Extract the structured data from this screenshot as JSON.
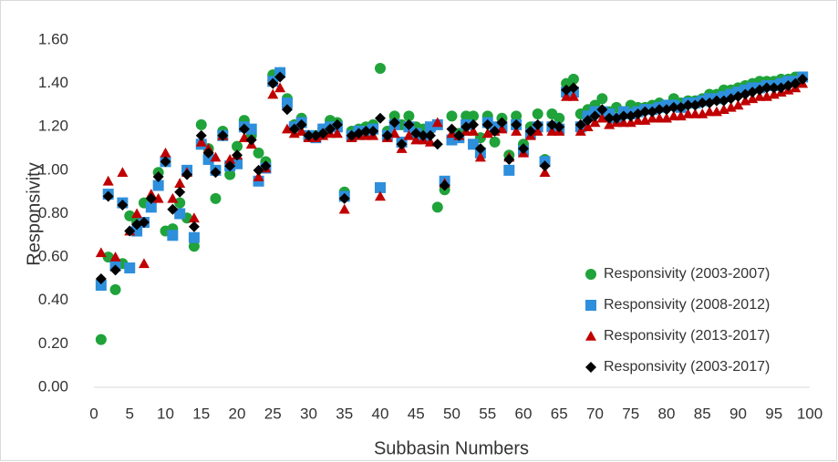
{
  "chart_data": {
    "type": "scatter",
    "x_label": "Subbasin Numbers",
    "y_label": "Responsivity",
    "x": [
      1,
      2,
      3,
      4,
      5,
      6,
      7,
      8,
      9,
      10,
      11,
      12,
      13,
      14,
      15,
      16,
      17,
      18,
      19,
      20,
      21,
      22,
      23,
      24,
      25,
      26,
      27,
      28,
      29,
      30,
      31,
      32,
      33,
      34,
      35,
      36,
      37,
      38,
      39,
      40,
      41,
      42,
      43,
      44,
      45,
      46,
      47,
      48,
      49,
      50,
      51,
      52,
      53,
      54,
      55,
      56,
      57,
      58,
      59,
      60,
      61,
      62,
      63,
      64,
      65,
      66,
      67,
      68,
      69,
      70,
      71,
      72,
      73,
      74,
      75,
      76,
      77,
      78,
      79,
      80,
      81,
      82,
      83,
      84,
      85,
      86,
      87,
      88,
      89,
      90,
      91,
      92,
      93,
      94,
      95,
      96,
      97,
      98,
      99
    ],
    "xlim": [
      0,
      100
    ],
    "xticks": [
      0,
      5,
      10,
      15,
      20,
      25,
      30,
      35,
      40,
      45,
      50,
      55,
      60,
      65,
      70,
      75,
      80,
      85,
      90,
      95,
      100
    ],
    "ylim": [
      0,
      1.6
    ],
    "yticks": [
      {
        "value": 0,
        "label": "0.00"
      },
      {
        "value": 0.2,
        "label": "0.20"
      },
      {
        "value": 0.4,
        "label": "0.40"
      },
      {
        "value": 0.6,
        "label": "0.60"
      },
      {
        "value": 0.8,
        "label": "0.80"
      },
      {
        "value": 1.0,
        "label": "1.00"
      },
      {
        "value": 1.2,
        "label": "1.20"
      },
      {
        "value": 1.4,
        "label": "1.40"
      },
      {
        "value": 1.6,
        "label": "1.60"
      }
    ],
    "grid": false,
    "legend": "lower right",
    "series": [
      {
        "name": "Responsivity (2003-2007)",
        "color": "#1fa33a",
        "marker": "circle",
        "values": [
          0.22,
          0.6,
          0.45,
          0.57,
          0.79,
          0.76,
          0.85,
          0.86,
          0.99,
          0.72,
          0.73,
          0.85,
          0.78,
          0.65,
          1.21,
          1.1,
          0.87,
          1.18,
          0.98,
          1.11,
          1.23,
          1.16,
          1.08,
          1.04,
          1.44,
          1.45,
          1.33,
          1.21,
          1.24,
          1.16,
          1.16,
          1.19,
          1.23,
          1.22,
          0.9,
          1.18,
          1.19,
          1.2,
          1.21,
          1.47,
          1.18,
          1.25,
          1.21,
          1.25,
          1.2,
          1.19,
          1.19,
          0.83,
          0.91,
          1.25,
          1.17,
          1.25,
          1.25,
          1.15,
          1.25,
          1.13,
          1.24,
          1.07,
          1.25,
          1.12,
          1.2,
          1.26,
          1.05,
          1.26,
          1.24,
          1.4,
          1.42,
          1.26,
          1.28,
          1.3,
          1.33,
          1.27,
          1.29,
          1.27,
          1.3,
          1.29,
          1.29,
          1.3,
          1.31,
          1.3,
          1.33,
          1.31,
          1.32,
          1.32,
          1.33,
          1.35,
          1.35,
          1.37,
          1.37,
          1.38,
          1.39,
          1.4,
          1.41,
          1.41,
          1.41,
          1.42,
          1.42,
          1.43,
          1.43
        ]
      },
      {
        "name": "Responsivity (2008-2012)",
        "color": "#2e8fdc",
        "marker": "square",
        "values": [
          0.47,
          0.89,
          0.56,
          0.85,
          0.55,
          0.72,
          0.76,
          0.83,
          0.93,
          1.04,
          0.7,
          0.8,
          1.0,
          0.69,
          1.12,
          1.05,
          1.0,
          1.16,
          1.02,
          1.03,
          1.2,
          1.19,
          0.95,
          1.01,
          1.41,
          1.45,
          1.31,
          1.2,
          1.22,
          1.16,
          1.15,
          1.19,
          1.2,
          1.2,
          0.88,
          1.16,
          1.18,
          1.18,
          1.19,
          0.92,
          1.16,
          1.21,
          1.13,
          1.2,
          1.17,
          1.15,
          1.2,
          1.21,
          0.95,
          1.14,
          1.15,
          1.21,
          1.12,
          1.08,
          1.22,
          1.2,
          1.2,
          1.0,
          1.21,
          1.09,
          1.17,
          1.2,
          1.04,
          1.2,
          1.19,
          1.36,
          1.36,
          1.2,
          1.25,
          1.27,
          1.27,
          1.26,
          1.24,
          1.27,
          1.26,
          1.27,
          1.28,
          1.28,
          1.29,
          1.3,
          1.3,
          1.29,
          1.31,
          1.31,
          1.32,
          1.33,
          1.33,
          1.34,
          1.35,
          1.36,
          1.37,
          1.38,
          1.38,
          1.39,
          1.39,
          1.4,
          1.41,
          1.41,
          1.43
        ]
      },
      {
        "name": "Responsivity (2013-2017)",
        "color": "#c00000",
        "marker": "triangle",
        "values": [
          0.62,
          0.95,
          0.6,
          0.99,
          0.72,
          0.8,
          0.57,
          0.89,
          0.87,
          1.08,
          0.87,
          0.94,
          0.99,
          0.78,
          1.13,
          1.1,
          1.06,
          1.16,
          1.05,
          1.07,
          1.15,
          1.12,
          0.97,
          1.01,
          1.35,
          1.38,
          1.19,
          1.17,
          1.18,
          1.15,
          1.15,
          1.16,
          1.17,
          1.17,
          0.82,
          1.15,
          1.16,
          1.16,
          1.16,
          0.88,
          1.15,
          1.17,
          1.1,
          1.16,
          1.14,
          1.14,
          1.13,
          1.22,
          0.94,
          1.17,
          1.16,
          1.18,
          1.18,
          1.06,
          1.17,
          1.18,
          1.19,
          1.06,
          1.18,
          1.08,
          1.16,
          1.18,
          0.99,
          1.18,
          1.18,
          1.34,
          1.34,
          1.18,
          1.2,
          1.22,
          1.24,
          1.21,
          1.22,
          1.22,
          1.22,
          1.23,
          1.23,
          1.24,
          1.24,
          1.24,
          1.25,
          1.25,
          1.26,
          1.26,
          1.26,
          1.27,
          1.27,
          1.28,
          1.29,
          1.3,
          1.32,
          1.33,
          1.34,
          1.34,
          1.35,
          1.36,
          1.37,
          1.38,
          1.4
        ]
      },
      {
        "name": "Responsivity (2003-2017)",
        "color": "#000000",
        "marker": "diamond",
        "values": [
          0.5,
          0.88,
          0.54,
          0.84,
          0.72,
          0.75,
          0.76,
          0.87,
          0.97,
          1.04,
          0.82,
          0.9,
          0.98,
          0.74,
          1.16,
          1.08,
          0.99,
          1.16,
          1.02,
          1.07,
          1.19,
          1.14,
          1.0,
          1.02,
          1.4,
          1.43,
          1.28,
          1.19,
          1.21,
          1.16,
          1.16,
          1.17,
          1.19,
          1.21,
          0.87,
          1.16,
          1.17,
          1.18,
          1.18,
          1.24,
          1.16,
          1.22,
          1.12,
          1.21,
          1.17,
          1.16,
          1.16,
          1.12,
          0.93,
          1.19,
          1.16,
          1.2,
          1.21,
          1.1,
          1.21,
          1.18,
          1.22,
          1.05,
          1.21,
          1.1,
          1.18,
          1.21,
          1.02,
          1.21,
          1.2,
          1.37,
          1.38,
          1.21,
          1.23,
          1.25,
          1.28,
          1.24,
          1.24,
          1.25,
          1.25,
          1.26,
          1.27,
          1.27,
          1.28,
          1.28,
          1.29,
          1.29,
          1.3,
          1.3,
          1.31,
          1.31,
          1.32,
          1.32,
          1.33,
          1.34,
          1.35,
          1.36,
          1.37,
          1.38,
          1.38,
          1.38,
          1.39,
          1.4,
          1.42
        ]
      }
    ]
  }
}
